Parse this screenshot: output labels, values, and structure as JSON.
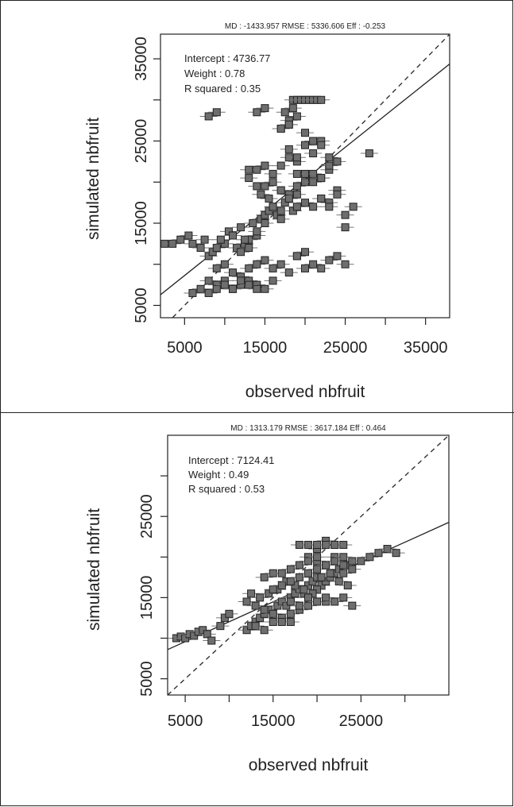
{
  "chart_data": [
    {
      "type": "scatter",
      "stats": "MD : -1433.957   RMSE : 5336.606   Eff : -0.253",
      "annotations": [
        "Intercept : 4736.77",
        "Weight : 0.78",
        "R squared : 0.35"
      ],
      "xlabel": "observed nbfruit",
      "ylabel": "simulated nbfruit",
      "xlim": [
        2000,
        38000
      ],
      "ylim": [
        3500,
        38000
      ],
      "xticks": [
        "5000",
        "15000",
        "25000",
        "35000"
      ],
      "yticks": [
        "5000",
        "15000",
        "25000",
        "35000"
      ],
      "xtick_minor": [
        10000,
        20000,
        30000
      ],
      "ytick_minor": [
        10000,
        20000,
        30000
      ],
      "identity_line": true,
      "regression": {
        "intercept": 4736.77,
        "slope": 0.78
      },
      "series": [
        {
          "x": [
            2500,
            3500,
            4500,
            5500,
            6000,
            7000,
            7500,
            8000,
            8500,
            9000,
            10000,
            9500,
            10500,
            11000,
            11500,
            12000,
            12500,
            13000,
            12000,
            13500,
            14000,
            14500,
            15000,
            15500,
            16000,
            14000,
            13000,
            12500,
            15000,
            16500,
            17000,
            17500,
            18000,
            18500,
            19000,
            17000,
            16000,
            15500,
            14500,
            15000,
            16000,
            17000,
            18000,
            19000,
            20000,
            21000,
            22000,
            23000,
            24000,
            13000,
            14000,
            15000,
            16000,
            17000,
            18000,
            19000,
            20000,
            21000,
            22000,
            23000,
            17000,
            18000,
            19000,
            20000,
            21000,
            22000,
            23000,
            24000,
            25000,
            26000,
            18000,
            19000,
            20000,
            21000,
            22000,
            17000,
            18000,
            19000,
            20000,
            21000,
            22000,
            23000,
            24000,
            9000,
            10000,
            11000,
            12000,
            13000,
            14000,
            15000,
            16000,
            17000,
            18000,
            19000,
            20000,
            8000,
            9000,
            10000,
            11000,
            12000,
            13000,
            14000,
            15000,
            16000,
            6000,
            7000,
            8000,
            9000,
            10000,
            11000,
            12000,
            13000,
            14000,
            19000,
            20000,
            21000,
            22000,
            23000,
            24000,
            25000,
            28000,
            25000,
            17500,
            18500,
            8000,
            9000,
            14000,
            15000,
            18000,
            18500,
            19000,
            19500,
            20000,
            20500,
            21000,
            21500,
            22000,
            17000,
            18000,
            19000,
            13000,
            14000,
            22000,
            23000
          ],
          "y": [
            12500,
            12500,
            13000,
            13500,
            12500,
            12000,
            13000,
            11000,
            11500,
            12000,
            12500,
            13000,
            14000,
            13500,
            12000,
            11500,
            12500,
            13000,
            14500,
            15000,
            13500,
            15500,
            16000,
            16500,
            17000,
            14000,
            12000,
            13000,
            15000,
            16000,
            16500,
            17500,
            18000,
            16500,
            17000,
            15500,
            17000,
            18000,
            18500,
            19500,
            20000,
            19000,
            18500,
            19500,
            20000,
            21000,
            20500,
            21500,
            19000,
            20500,
            21500,
            22000,
            21000,
            22000,
            23000,
            22500,
            21000,
            20000,
            20500,
            22000,
            19000,
            18000,
            18500,
            17500,
            17000,
            18000,
            17500,
            18500,
            16000,
            17000,
            24000,
            23000,
            24500,
            23500,
            25000,
            26500,
            27000,
            28000,
            26000,
            25000,
            24500,
            23000,
            22500,
            9500,
            10000,
            9000,
            8500,
            9500,
            10000,
            10500,
            9500,
            10000,
            9000,
            11000,
            9500,
            8000,
            7500,
            8000,
            7000,
            7500,
            8000,
            7500,
            7000,
            8000,
            6500,
            7000,
            6500,
            7000,
            7500,
            7000,
            8000,
            7500,
            7000,
            11000,
            11500,
            10000,
            9500,
            10500,
            11000,
            10000,
            23500,
            14500,
            28500,
            29000,
            28000,
            28500,
            28500,
            29000,
            27500,
            30000,
            30000,
            30000,
            30000,
            30000,
            30000,
            30000,
            30000,
            26500,
            27000,
            21000,
            21500,
            19500,
            18000,
            17000
          ]
        }
      ]
    },
    {
      "type": "scatter",
      "stats": "MD : 1313.179   RMSE : 3617.184   Eff : 0.464",
      "annotations": [
        "Intercept : 7124.41",
        "Weight : 0.49",
        "R squared : 0.53"
      ],
      "xlabel": "observed nbfruit",
      "ylabel": "simulated nbfruit",
      "xlim": [
        3000,
        35000
      ],
      "ylim": [
        3000,
        35000
      ],
      "xticks": [
        "5000",
        "15000",
        "25000"
      ],
      "yticks": [
        "5000",
        "15000",
        "25000"
      ],
      "xtick_minor": [
        10000,
        20000,
        30000
      ],
      "ytick_minor": [
        10000,
        20000,
        30000
      ],
      "identity_line": true,
      "regression": {
        "intercept": 7124.41,
        "slope": 0.49
      },
      "series": [
        {
          "x": [
            4000,
            4500,
            5000,
            5500,
            6000,
            6500,
            7000,
            7500,
            8000,
            9000,
            9500,
            10000,
            12000,
            12500,
            13000,
            13500,
            14000,
            14500,
            15000,
            15500,
            16000,
            16500,
            17000,
            17500,
            18000,
            18500,
            19000,
            19500,
            20000,
            20500,
            21000,
            21500,
            22000,
            22500,
            23000,
            23500,
            24000,
            25000,
            26000,
            27000,
            28000,
            29000,
            12000,
            13000,
            14000,
            15000,
            16000,
            17000,
            18000,
            19000,
            20000,
            21000,
            13000,
            14000,
            15000,
            16000,
            17000,
            18000,
            19000,
            12500,
            13500,
            14500,
            15500,
            16500,
            17500,
            18500,
            19500,
            20500,
            21500,
            22500,
            23500,
            14000,
            15000,
            19000,
            20000,
            21000,
            22000,
            23000,
            18000,
            19000,
            20000,
            21000,
            22000,
            20000,
            21000,
            22000,
            23000,
            24000,
            15000,
            16000,
            17000,
            18000,
            19000,
            20000,
            21000,
            22000,
            23000,
            17000,
            18000,
            19000,
            20000,
            21000,
            22000,
            23000,
            24000,
            16000,
            17000,
            18000,
            19000,
            20000
          ],
          "y": [
            10000,
            10200,
            10000,
            10500,
            10300,
            10800,
            11000,
            10500,
            9700,
            11500,
            12500,
            13000,
            11000,
            11500,
            12000,
            12500,
            13000,
            13500,
            13000,
            14000,
            14500,
            14000,
            15000,
            15500,
            16000,
            15500,
            16500,
            17000,
            17500,
            16500,
            17000,
            17500,
            18000,
            18500,
            18000,
            19000,
            19500,
            19500,
            20000,
            20500,
            21000,
            20500,
            14500,
            14000,
            13500,
            13000,
            12500,
            12000,
            14000,
            15000,
            16000,
            14500,
            11500,
            11000,
            12000,
            12000,
            13000,
            13500,
            14000,
            15500,
            15000,
            15500,
            16000,
            17000,
            16500,
            16000,
            15500,
            17500,
            18000,
            17000,
            16500,
            17500,
            18000,
            20000,
            21000,
            22000,
            21500,
            21500,
            21500,
            21500,
            21500,
            21500,
            21500,
            19500,
            19000,
            20000,
            19000,
            18500,
            16000,
            16500,
            17000,
            17500,
            18000,
            18500,
            19000,
            19500,
            20000,
            14500,
            14000,
            15000,
            14500,
            15000,
            14500,
            15000,
            14000,
            18000,
            18500,
            19000,
            19500,
            20000
          ]
        }
      ]
    }
  ]
}
